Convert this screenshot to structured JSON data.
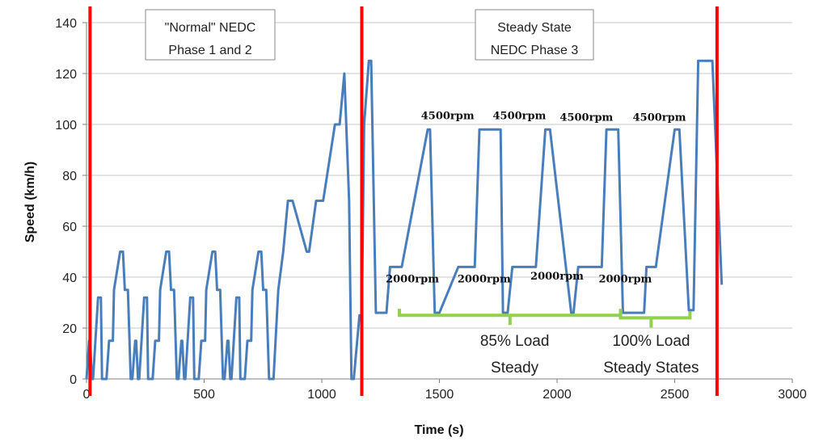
{
  "colors": {
    "speed_line": "#4a7ebb",
    "marker_line": "#ff0000",
    "load_bracket": "#92d050",
    "grid": "#c8c8c8",
    "axis": "#7f7f7f"
  },
  "chart_data": {
    "type": "line",
    "xlabel": "Time (s)",
    "ylabel": "Speed (km/h)",
    "xlim": [
      0,
      3000
    ],
    "ylim": [
      0,
      140
    ],
    "x_ticks": [
      0,
      500,
      1000,
      1500,
      2000,
      2500,
      3000
    ],
    "y_ticks": [
      0,
      20,
      40,
      60,
      80,
      100,
      120,
      140
    ],
    "grid": "horizontal",
    "series": [
      {
        "x": [
          0,
          11,
          15,
          23,
          28,
          49,
          61,
          66,
          85,
          96,
          112,
          117,
          143,
          155,
          163,
          176,
          188,
          195,
          207,
          211,
          219,
          224,
          245,
          257,
          262,
          281,
          292,
          308,
          313,
          339,
          351,
          359,
          372,
          384,
          391,
          403,
          407,
          415,
          420,
          441,
          453,
          458,
          477,
          488,
          504,
          509,
          535,
          547,
          555,
          568,
          580,
          587,
          599,
          603,
          611,
          616,
          637,
          649,
          654,
          673,
          684,
          700,
          705,
          731,
          743,
          751,
          764,
          776,
          783,
          795,
          815,
          836,
          856,
          876,
          936,
          946,
          976,
          996,
          1006,
          1056,
          1076,
          1096,
          1116,
          1126,
          1136,
          1160,
          1170,
          1180,
          1200,
          1210,
          1230,
          1275,
          1290,
          1320,
          1340,
          1450,
          1460,
          1480,
          1500,
          1580,
          1600,
          1650,
          1670,
          1760,
          1770,
          1790,
          1810,
          1890,
          1910,
          1950,
          1970,
          2060,
          2070,
          2090,
          2110,
          2190,
          2210,
          2260,
          2280,
          2370,
          2380,
          2400,
          2420,
          2500,
          2520,
          2560,
          2580,
          2600,
          2660,
          2700
        ],
        "y": [
          0,
          15,
          15,
          0,
          0,
          32,
          32,
          0,
          0,
          15,
          15,
          35,
          50,
          50,
          35,
          35,
          0,
          0,
          15,
          15,
          0,
          0,
          32,
          32,
          0,
          0,
          15,
          15,
          35,
          50,
          50,
          35,
          35,
          0,
          0,
          15,
          15,
          0,
          0,
          32,
          32,
          0,
          0,
          15,
          15,
          35,
          50,
          50,
          35,
          35,
          0,
          0,
          15,
          15,
          0,
          0,
          32,
          32,
          0,
          0,
          15,
          15,
          35,
          50,
          50,
          35,
          35,
          0,
          0,
          0,
          35,
          50,
          70,
          70,
          50,
          50,
          70,
          70,
          70,
          100,
          100,
          120,
          70,
          0,
          0,
          25,
          25,
          100,
          125,
          125,
          26,
          26,
          44,
          44,
          44,
          98,
          98,
          26,
          26,
          44,
          44,
          44,
          98,
          98,
          26,
          26,
          44,
          44,
          44,
          98,
          98,
          26,
          26,
          44,
          44,
          44,
          98,
          98,
          26,
          26,
          44,
          44,
          44,
          98,
          98,
          27,
          27,
          125,
          125,
          37
        ]
      }
    ],
    "vertical_markers": [
      15,
      1170,
      2680
    ],
    "annotations": {
      "box_left": [
        "\"Normal\" NEDC",
        "Phase 1 and 2"
      ],
      "box_right": [
        "Steady State",
        "NEDC Phase 3"
      ],
      "rpm_high": [
        {
          "label": "4500rpm",
          "x": 1535,
          "y": 102
        },
        {
          "label": "4500rpm",
          "x": 1840,
          "y": 102
        },
        {
          "label": "4500rpm",
          "x": 2125,
          "y": 101.5
        },
        {
          "label": "4500rpm",
          "x": 2435,
          "y": 101.5
        }
      ],
      "rpm_low": [
        {
          "label": "2000rpm",
          "x": 1385,
          "y": 38
        },
        {
          "label": "2000rpm",
          "x": 1690,
          "y": 38
        },
        {
          "label": "2000rpm",
          "x": 2000,
          "y": 39
        },
        {
          "label": "2000rpm",
          "x": 2290,
          "y": 38
        }
      ],
      "brackets": [
        {
          "x_start": 1330,
          "x_end": 2270,
          "y": 25,
          "tip_x": 1800
        },
        {
          "x_start": 2270,
          "x_end": 2565,
          "y": 24,
          "tip_x": 2400
        }
      ],
      "load_labels": [
        {
          "lines": [
            "85% Load",
            "Steady"
          ],
          "x": 1820
        },
        {
          "lines": [
            "100% Load",
            "Steady States"
          ],
          "x": 2400
        }
      ]
    }
  }
}
